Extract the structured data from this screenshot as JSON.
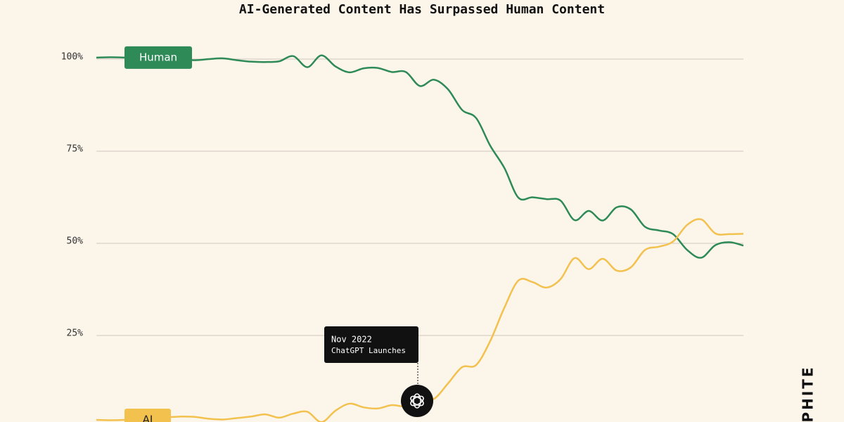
{
  "chart_data": {
    "type": "line",
    "title": "AI-Generated Content Has Surpassed Human Content",
    "ylim": [
      0,
      100
    ],
    "yticks": [
      {
        "value": 25,
        "label": "25%"
      },
      {
        "value": 50,
        "label": "50%"
      },
      {
        "value": 75,
        "label": "75%"
      },
      {
        "value": 100,
        "label": "100%"
      }
    ],
    "grid": true,
    "series": [
      {
        "name": "Human",
        "color": "#2e8a57",
        "values": [
          100.4,
          100.5,
          100.4,
          100.2,
          100.1,
          100,
          99.9,
          99.7,
          100,
          100.2,
          99.7,
          99.3,
          99.2,
          99.4,
          100.8,
          97.8,
          101,
          98,
          96.4,
          97.5,
          97.6,
          96.5,
          96.5,
          92.7,
          94.4,
          91.8,
          86.2,
          84,
          76.5,
          70.5,
          62.4,
          62.5,
          62,
          61.6,
          56.3,
          58.8,
          56.2,
          59.8,
          59.2,
          54.5,
          53.5,
          52.5,
          48.2,
          46.1,
          49.5,
          50.3,
          49.4
        ]
      },
      {
        "name": "AI",
        "color": "#f2c14e",
        "values": [
          2.1,
          2.0,
          2.1,
          2.4,
          2.6,
          2.8,
          3.0,
          2.9,
          2.4,
          2.2,
          2.6,
          3.0,
          3.6,
          2.7,
          3.8,
          4.3,
          1.5,
          4.6,
          6.5,
          5.5,
          5.2,
          6.1,
          5.8,
          7.6,
          7.8,
          12,
          16.4,
          17,
          23.5,
          32.5,
          39.9,
          39.5,
          38,
          40.3,
          46,
          43,
          45.8,
          42.6,
          43.5,
          48.2,
          49.1,
          50.5,
          55,
          56.5,
          52.7,
          52.5,
          52.6
        ]
      }
    ],
    "annotation": {
      "date": "Nov 2022",
      "text": "ChatGPT Launches"
    },
    "brand": "PHITE"
  }
}
